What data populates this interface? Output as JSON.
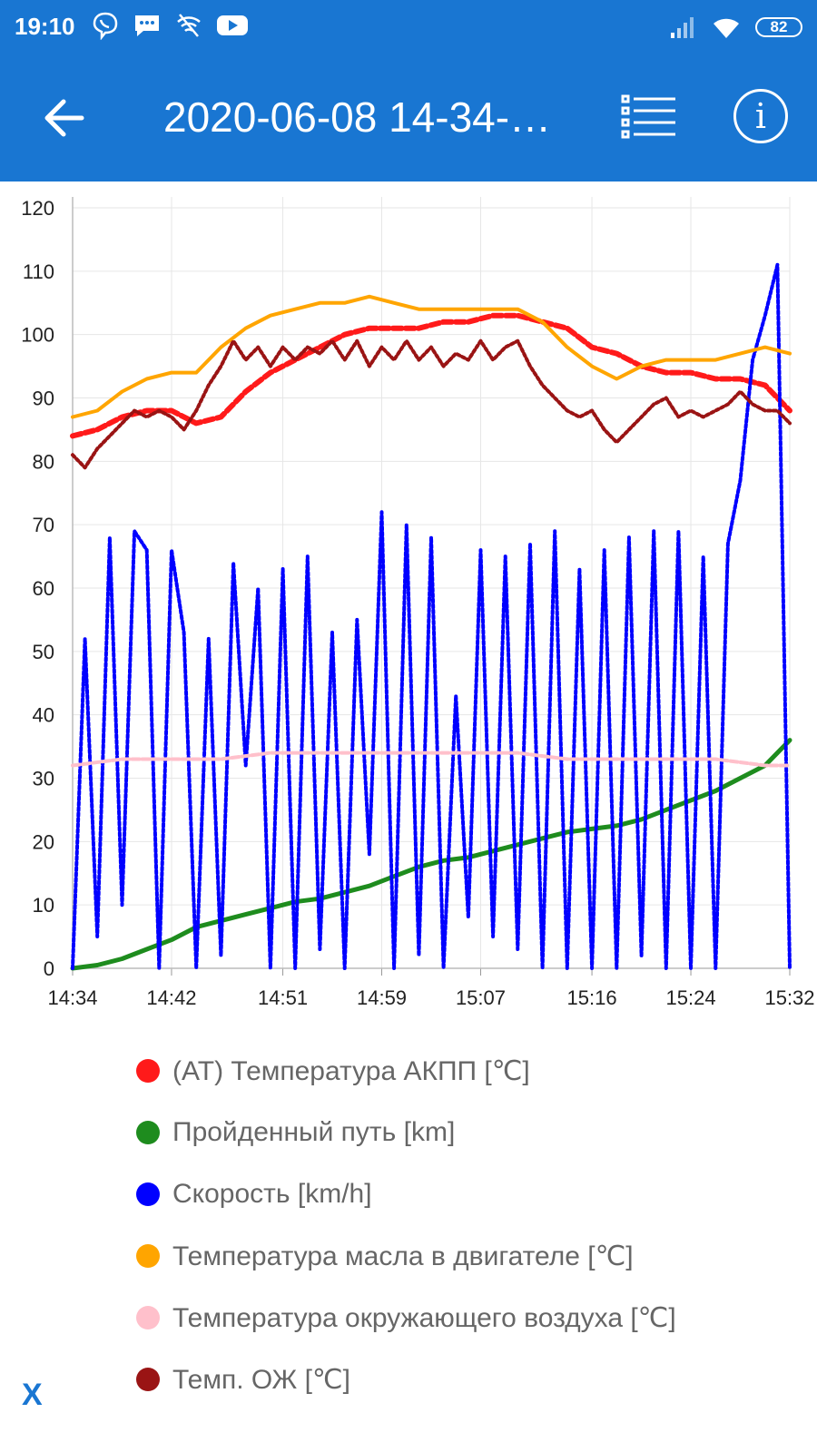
{
  "status_bar": {
    "time": "19:10",
    "icons_left": [
      "viber-icon",
      "messages-icon",
      "wifi-off-icon",
      "youtube-icon"
    ],
    "icons_right": [
      "signal-icon",
      "wifi-icon"
    ],
    "battery": "82"
  },
  "app_bar": {
    "title": "2020-06-08 14-34-…",
    "back_icon": "arrow-left-icon",
    "list_icon": "list-icon",
    "info_icon": "info-icon",
    "info_glyph": "i"
  },
  "colors": {
    "primary": "#1976d2",
    "at_temp": "#ff1a1a",
    "distance": "#1e8c1e",
    "speed": "#0000ff",
    "oil_temp": "#ffa500",
    "air_temp": "#ffc0cb",
    "coolant": "#9a1414"
  },
  "chart_data": {
    "type": "line",
    "x_ticks": [
      "14:34",
      "14:42",
      "14:51",
      "14:59",
      "15:07",
      "15:16",
      "15:24",
      "15:32"
    ],
    "y_ticks": [
      "0",
      "10",
      "20",
      "30",
      "40",
      "50",
      "60",
      "70",
      "80",
      "90",
      "100",
      "110",
      "120"
    ],
    "ylim": [
      0,
      120
    ],
    "x_domain": [
      "14:34",
      "15:32"
    ],
    "grid": true,
    "series": [
      {
        "name": "(AT) Температура АКПП [℃]",
        "color": "#ff1a1a",
        "x": [
          "14:34",
          "14:36",
          "14:38",
          "14:40",
          "14:42",
          "14:44",
          "14:46",
          "14:48",
          "14:50",
          "14:52",
          "14:54",
          "14:56",
          "14:58",
          "15:00",
          "15:02",
          "15:04",
          "15:06",
          "15:08",
          "15:10",
          "15:12",
          "15:14",
          "15:16",
          "15:18",
          "15:20",
          "15:22",
          "15:24",
          "15:26",
          "15:28",
          "15:30",
          "15:32"
        ],
        "y": [
          84,
          85,
          87,
          88,
          88,
          86,
          87,
          91,
          94,
          96,
          98,
          100,
          101,
          101,
          101,
          102,
          102,
          103,
          103,
          102,
          101,
          98,
          97,
          95,
          94,
          94,
          93,
          93,
          92,
          88
        ]
      },
      {
        "name": "Пройденный путь [km]",
        "color": "#1e8c1e",
        "x": [
          "14:34",
          "14:36",
          "14:38",
          "14:40",
          "14:42",
          "14:44",
          "14:46",
          "14:48",
          "14:50",
          "14:52",
          "14:54",
          "14:56",
          "14:58",
          "15:00",
          "15:02",
          "15:04",
          "15:06",
          "15:08",
          "15:10",
          "15:12",
          "15:14",
          "15:16",
          "15:18",
          "15:20",
          "15:22",
          "15:24",
          "15:26",
          "15:28",
          "15:30",
          "15:32"
        ],
        "y": [
          0,
          0.5,
          1.5,
          3,
          4.5,
          6.5,
          7.5,
          8.5,
          9.5,
          10.5,
          11,
          12,
          13,
          14.5,
          16,
          17,
          17.5,
          18.5,
          19.5,
          20.5,
          21.5,
          22,
          22.5,
          23.5,
          25,
          26.5,
          28,
          30,
          32,
          36
        ]
      },
      {
        "name": "Скорость [km/h]",
        "color": "#0000ff",
        "x": [
          "14:34",
          "14:35",
          "14:36",
          "14:37",
          "14:38",
          "14:39",
          "14:40",
          "14:41",
          "14:42",
          "14:43",
          "14:44",
          "14:45",
          "14:46",
          "14:47",
          "14:48",
          "14:49",
          "14:50",
          "14:51",
          "14:52",
          "14:53",
          "14:54",
          "14:55",
          "14:56",
          "14:57",
          "14:58",
          "14:59",
          "15:00",
          "15:01",
          "15:02",
          "15:03",
          "15:04",
          "15:05",
          "15:06",
          "15:07",
          "15:08",
          "15:09",
          "15:10",
          "15:11",
          "15:12",
          "15:13",
          "15:14",
          "15:15",
          "15:16",
          "15:17",
          "15:18",
          "15:19",
          "15:20",
          "15:21",
          "15:22",
          "15:23",
          "15:24",
          "15:25",
          "15:26",
          "15:27",
          "15:28",
          "15:29",
          "15:30",
          "15:31",
          "15:32"
        ],
        "y": [
          0,
          52,
          5,
          68,
          10,
          69,
          66,
          0,
          66,
          53,
          0,
          52,
          2,
          64,
          32,
          60,
          0,
          63,
          0,
          65,
          3,
          53,
          0,
          55,
          18,
          72,
          0,
          70,
          2,
          68,
          0,
          43,
          8,
          66,
          5,
          65,
          3,
          67,
          0,
          69,
          0,
          63,
          0,
          66,
          0,
          68,
          2,
          69,
          0,
          69,
          0,
          65,
          0,
          67,
          77,
          96,
          103,
          111,
          0
        ]
      },
      {
        "name": "Температура масла в двигателе [℃]",
        "color": "#ffa500",
        "x": [
          "14:34",
          "14:36",
          "14:38",
          "14:40",
          "14:42",
          "14:44",
          "14:46",
          "14:48",
          "14:50",
          "14:52",
          "14:54",
          "14:56",
          "14:58",
          "15:00",
          "15:02",
          "15:04",
          "15:06",
          "15:08",
          "15:10",
          "15:12",
          "15:14",
          "15:16",
          "15:18",
          "15:20",
          "15:22",
          "15:24",
          "15:26",
          "15:28",
          "15:30",
          "15:32"
        ],
        "y": [
          87,
          88,
          91,
          93,
          94,
          94,
          98,
          101,
          103,
          104,
          105,
          105,
          106,
          105,
          104,
          104,
          104,
          104,
          104,
          102,
          98,
          95,
          93,
          95,
          96,
          96,
          96,
          97,
          98,
          97
        ]
      },
      {
        "name": "Температура окружающего воздуха [℃]",
        "color": "#ffc0cb",
        "x": [
          "14:34",
          "14:38",
          "14:42",
          "14:46",
          "14:50",
          "14:54",
          "14:58",
          "15:02",
          "15:06",
          "15:10",
          "15:14",
          "15:18",
          "15:22",
          "15:26",
          "15:30",
          "15:32"
        ],
        "y": [
          32,
          33,
          33,
          33,
          34,
          34,
          34,
          34,
          34,
          34,
          33,
          33,
          33,
          33,
          32,
          32
        ]
      },
      {
        "name": "Темп. ОЖ [℃]",
        "color": "#9a1414",
        "x": [
          "14:34",
          "14:35",
          "14:36",
          "14:37",
          "14:38",
          "14:39",
          "14:40",
          "14:41",
          "14:42",
          "14:43",
          "14:44",
          "14:45",
          "14:46",
          "14:47",
          "14:48",
          "14:49",
          "14:50",
          "14:51",
          "14:52",
          "14:53",
          "14:54",
          "14:55",
          "14:56",
          "14:57",
          "14:58",
          "14:59",
          "15:00",
          "15:01",
          "15:02",
          "15:03",
          "15:04",
          "15:05",
          "15:06",
          "15:07",
          "15:08",
          "15:09",
          "15:10",
          "15:11",
          "15:12",
          "15:13",
          "15:14",
          "15:15",
          "15:16",
          "15:17",
          "15:18",
          "15:19",
          "15:20",
          "15:21",
          "15:22",
          "15:23",
          "15:24",
          "15:25",
          "15:26",
          "15:27",
          "15:28",
          "15:29",
          "15:30",
          "15:31",
          "15:32"
        ],
        "y": [
          81,
          79,
          82,
          84,
          86,
          88,
          87,
          88,
          87,
          85,
          88,
          92,
          95,
          99,
          96,
          98,
          95,
          98,
          96,
          98,
          97,
          99,
          96,
          99,
          95,
          98,
          96,
          99,
          96,
          98,
          95,
          97,
          96,
          99,
          96,
          98,
          99,
          95,
          92,
          90,
          88,
          87,
          88,
          85,
          83,
          85,
          87,
          89,
          90,
          87,
          88,
          87,
          88,
          89,
          91,
          89,
          88,
          88,
          86
        ]
      }
    ]
  },
  "close_label": "X"
}
